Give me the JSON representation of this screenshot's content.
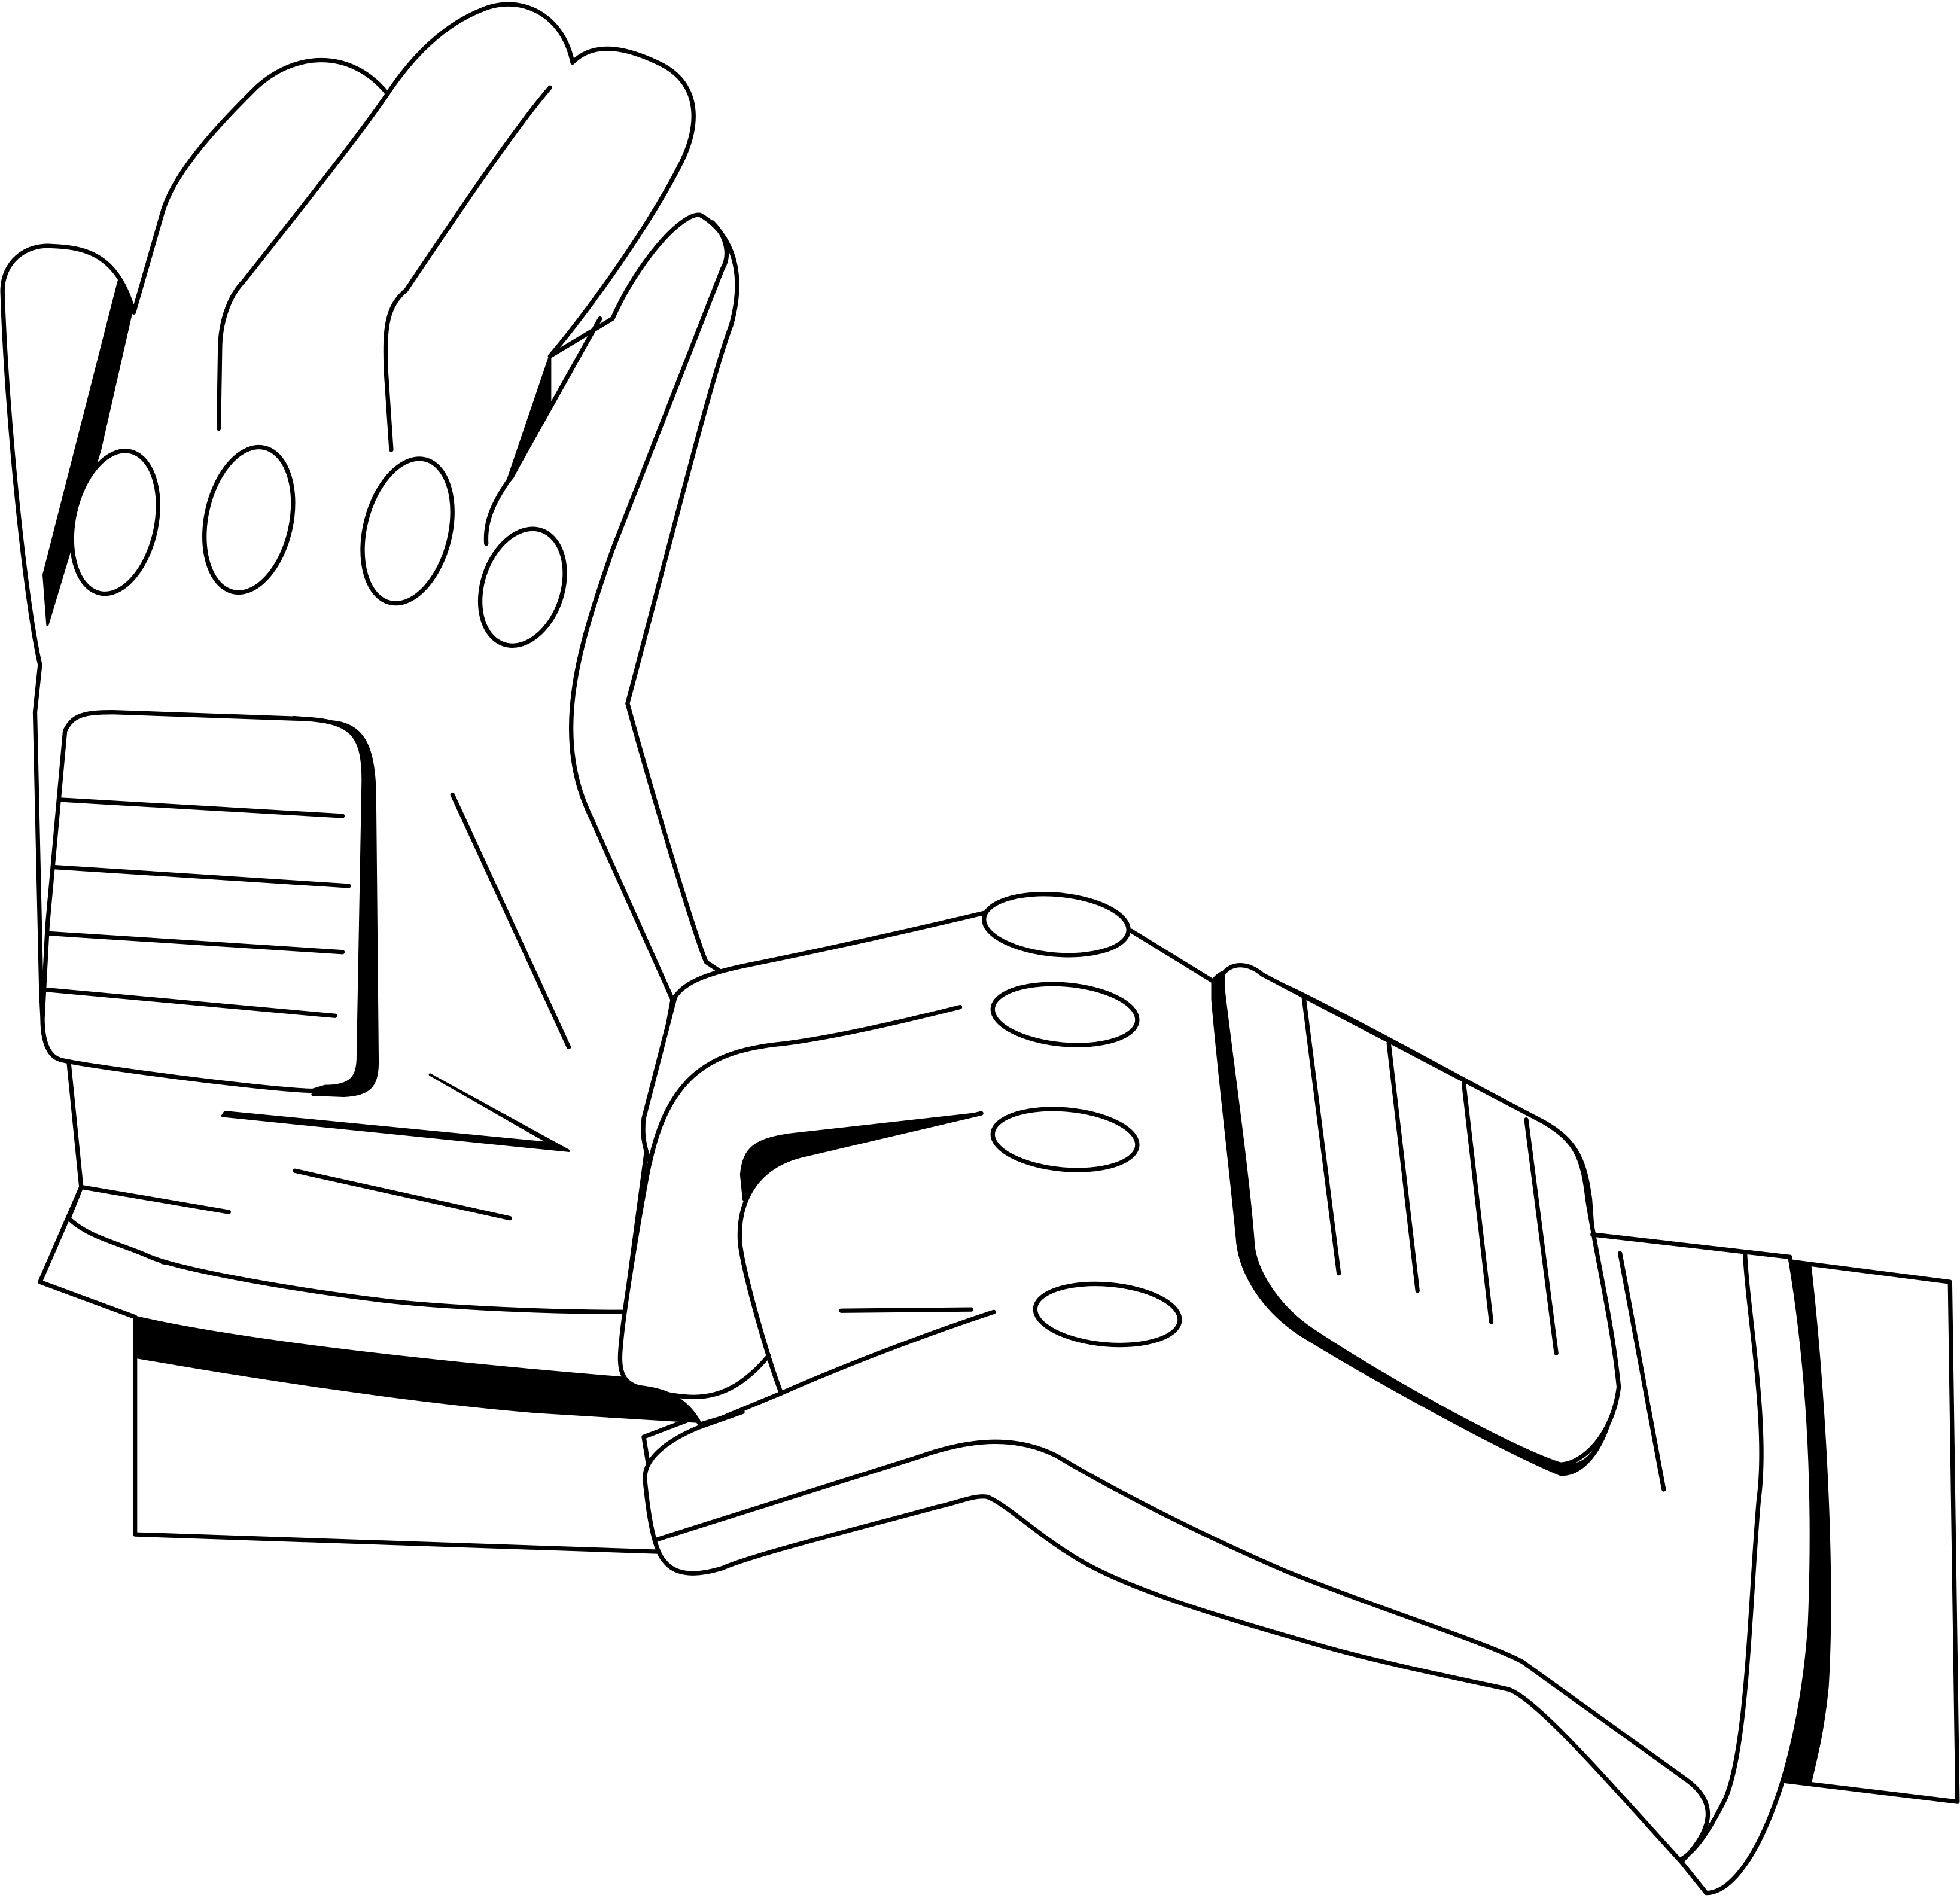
{
  "drawing": {
    "subject": "pair-of-gloves-line-art",
    "ink_color": "#000000",
    "paper_color": "#ffffff",
    "gloves": [
      {
        "id": "upright-glove",
        "orientation": "fingers-up",
        "knuckle_holes": 4,
        "back_panel_stripes": 4
      },
      {
        "id": "horizontal-glove",
        "orientation": "fingers-left",
        "knuckle_holes": 4,
        "back_panel_stripes": 4
      }
    ]
  }
}
